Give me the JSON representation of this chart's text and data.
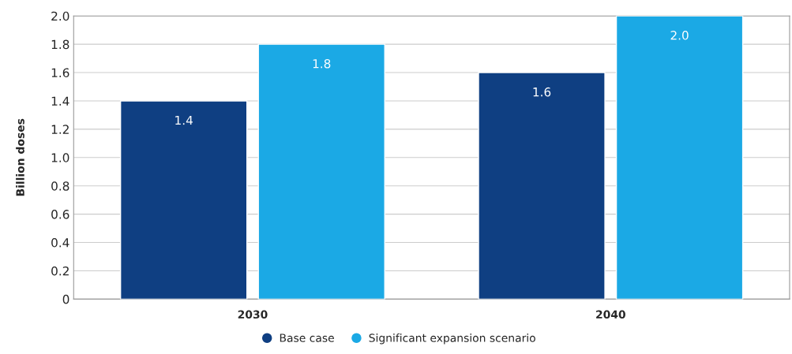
{
  "chart_data": {
    "type": "bar",
    "ylabel": "Billion doses",
    "categories": [
      "2030",
      "2040"
    ],
    "series": [
      {
        "name": "Base case",
        "color": "#0f3f82",
        "values": [
          1.4,
          1.6
        ],
        "value_labels": [
          "1.4",
          "1.6"
        ]
      },
      {
        "name": "Significant expansion scenario",
        "color": "#1ba9e5",
        "values": [
          1.8,
          2.0
        ],
        "value_labels": [
          "1.8",
          "2.0"
        ]
      }
    ],
    "ylim": [
      0,
      2.0
    ],
    "yticks": [
      0,
      0.2,
      0.4,
      0.6,
      0.8,
      {
        "value": 1.0,
        "label": "1.0"
      },
      1.2,
      1.4,
      1.6,
      1.8,
      {
        "value": 2.0,
        "label": "2.0"
      }
    ],
    "grid": "y",
    "legend": "bottom"
  }
}
